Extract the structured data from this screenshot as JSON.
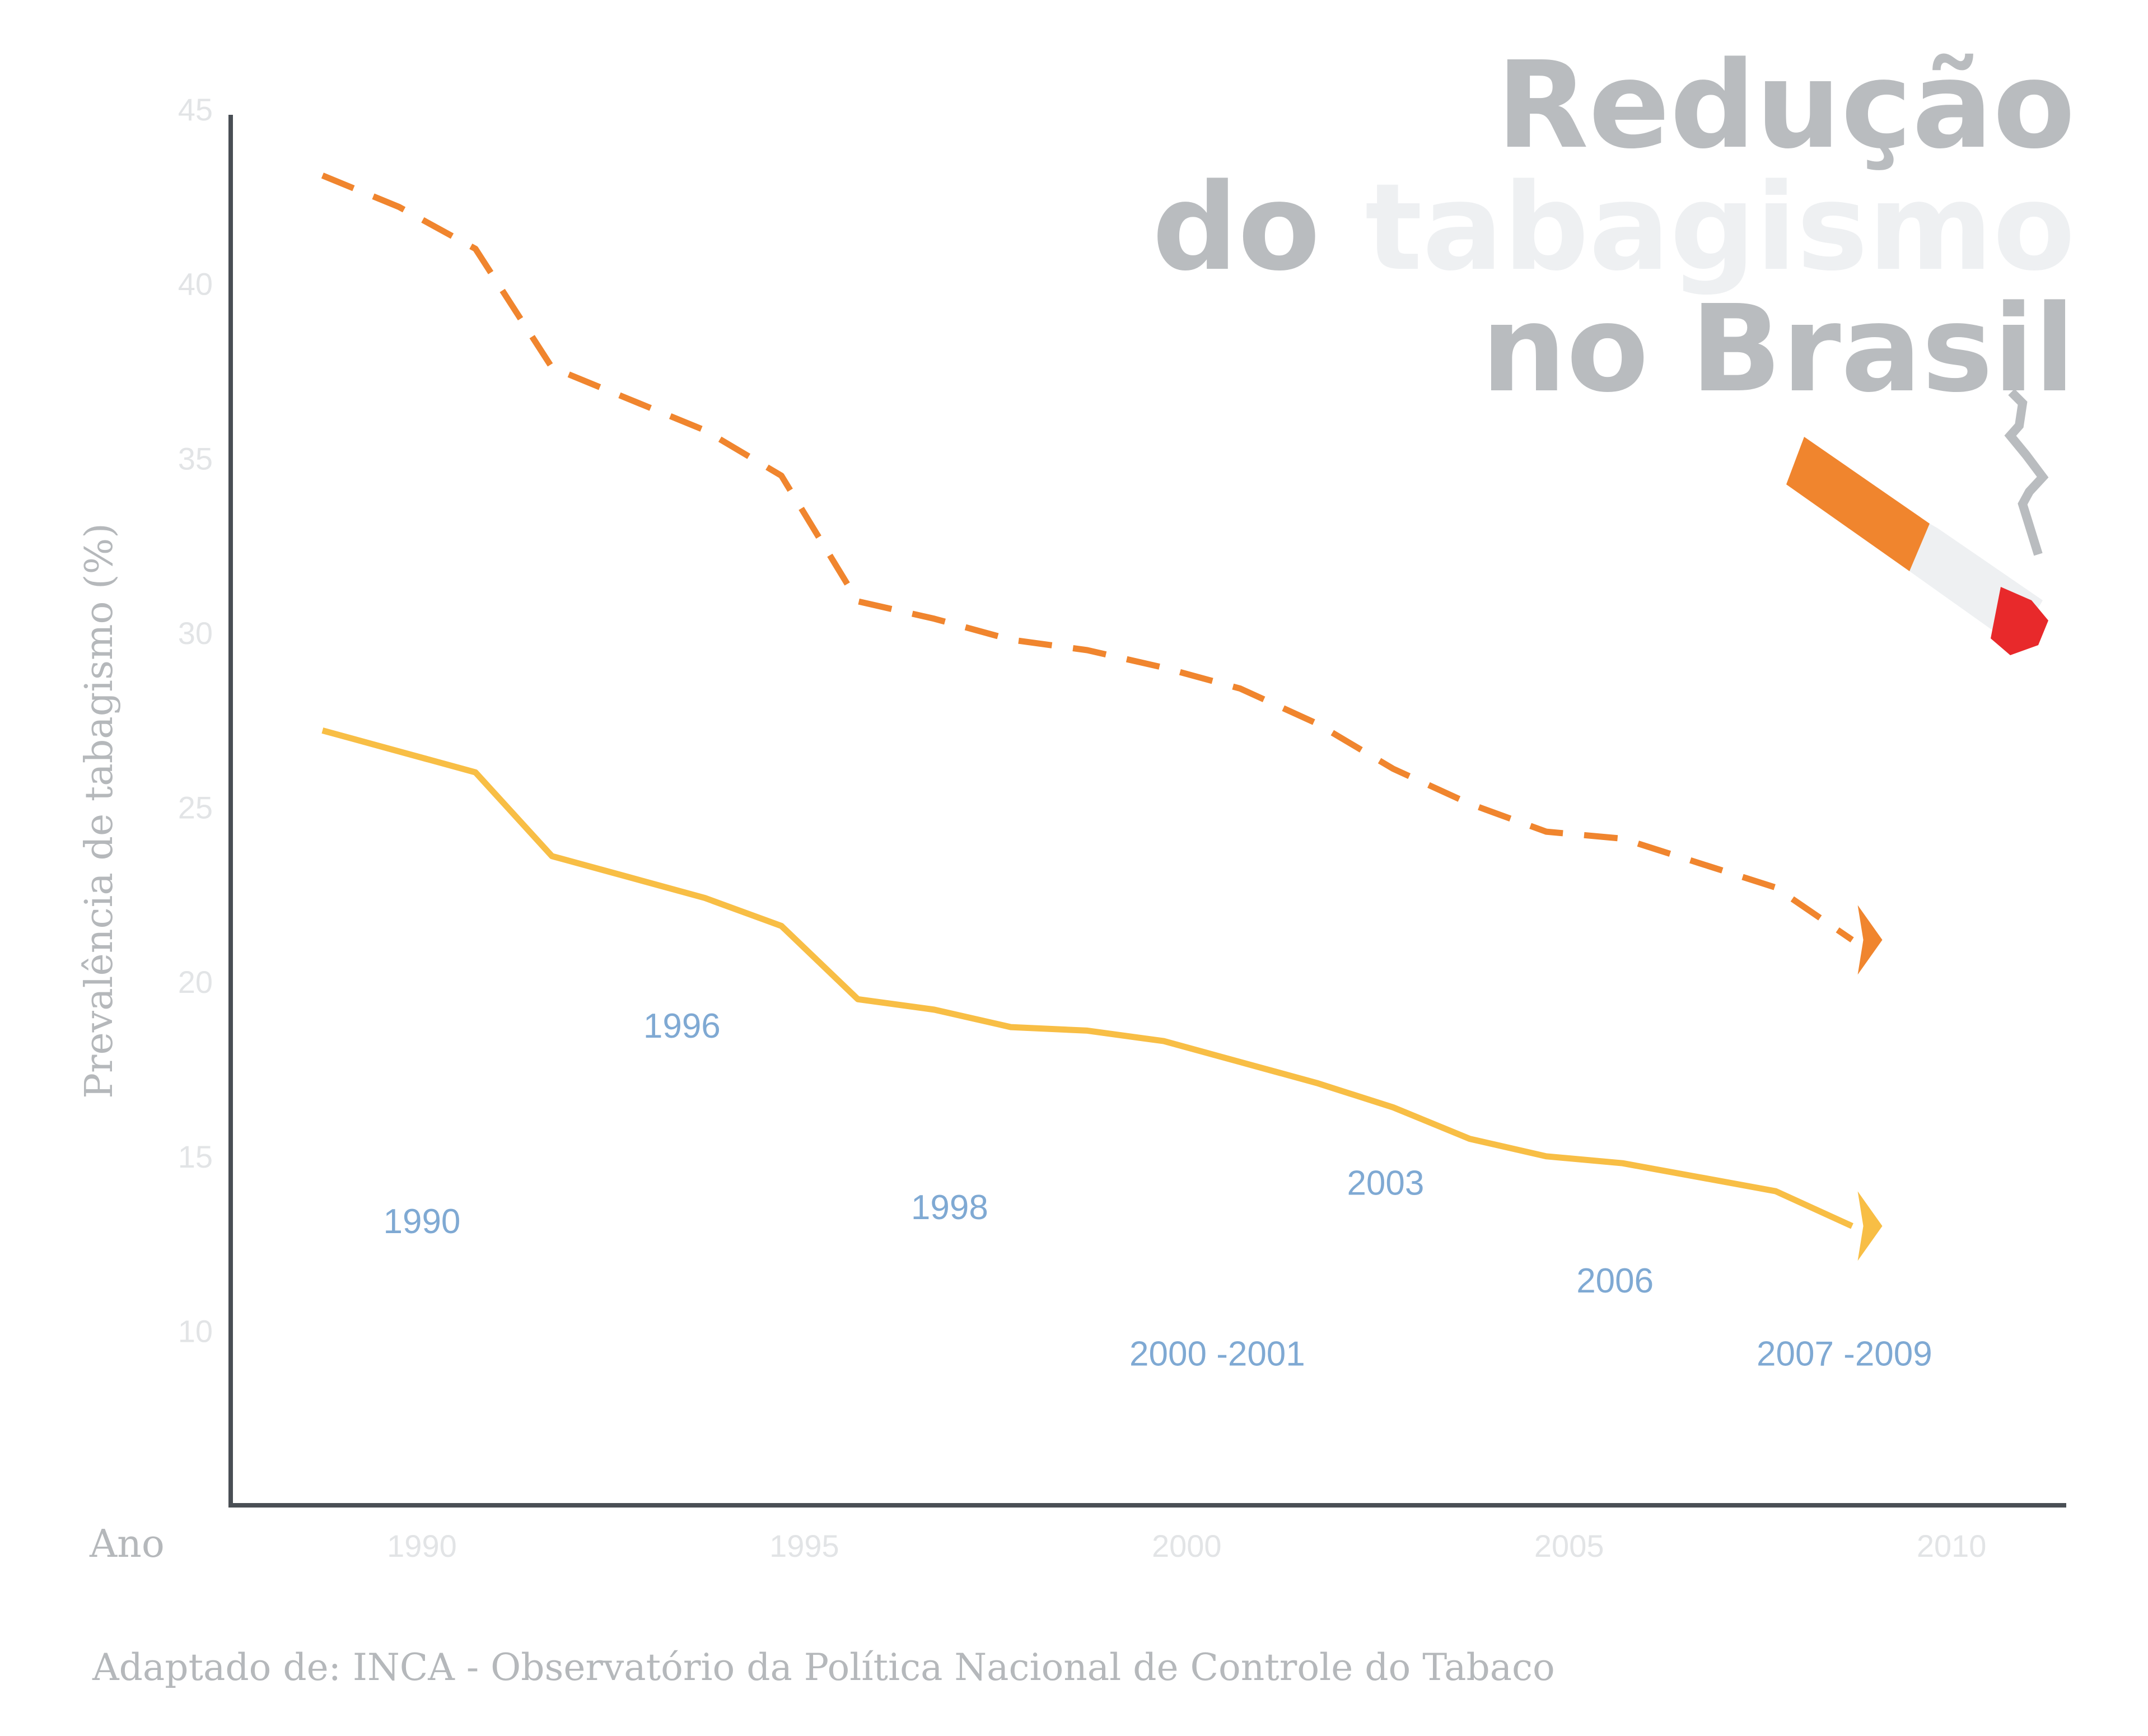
{
  "title": {
    "line1": "Redução",
    "line2_a": "do",
    "line2_b": "tabagismo",
    "line3": "no Brasil"
  },
  "colors": {
    "title_dark": "#b9bcbf",
    "title_light": "#eef0f2",
    "axis": "#4a4f55",
    "tick_label": "#e2e4e6",
    "axis_label": "#b5b8bb",
    "annotation": "#7fa9d3",
    "series_dashed": "#f0852e",
    "series_solid": "#f8be45",
    "source": "#b5b8bb",
    "cig_filter": "#f0852e",
    "cig_paper": "#eef0f2",
    "cig_ember": "#e8292b",
    "smoke": "#b9bcbf"
  },
  "chart_data": {
    "type": "line",
    "xlabel": "Ano",
    "ylabel": "Prevalência de tabagismo (%)",
    "xlim": [
      1987.5,
      2011.5
    ],
    "ylim": [
      5,
      45
    ],
    "x_ticks": [
      1990,
      1995,
      2000,
      2005,
      2010
    ],
    "y_ticks": [
      10,
      15,
      20,
      25,
      30,
      35,
      40,
      45
    ],
    "grid": false,
    "series": [
      {
        "style": "dashed",
        "x": [
          1988.7,
          1989.7,
          1990.7,
          1991.7,
          1992.7,
          1993.7,
          1994.7,
          1995.7,
          1996.7,
          1997.7,
          1998.7,
          1999.7,
          2000.7,
          2001.7,
          2002.7,
          2003.7,
          2004.7,
          2005.7,
          2006.7,
          2007.7,
          2008.7
        ],
        "values": [
          43.1,
          42.2,
          41.0,
          37.6,
          36.7,
          35.8,
          34.5,
          30.9,
          30.4,
          29.8,
          29.5,
          29.0,
          28.4,
          27.4,
          26.1,
          25.1,
          24.3,
          24.1,
          23.4,
          22.7,
          21.2
        ]
      },
      {
        "style": "solid",
        "x": [
          1988.7,
          1989.7,
          1990.7,
          1991.7,
          1992.7,
          1993.7,
          1994.7,
          1995.7,
          1996.7,
          1997.7,
          1998.7,
          1999.7,
          2000.7,
          2001.7,
          2002.7,
          2003.7,
          2004.7,
          2005.7,
          2006.7,
          2007.7,
          2008.7
        ],
        "values": [
          27.2,
          26.6,
          26.0,
          23.6,
          23.0,
          22.4,
          21.6,
          19.5,
          19.2,
          18.7,
          18.6,
          18.3,
          17.7,
          17.1,
          16.4,
          15.5,
          15.0,
          14.8,
          14.4,
          14.0,
          13.0
        ]
      }
    ],
    "annotations": [
      {
        "text": "1990",
        "x": 1990.0,
        "y": 12.8
      },
      {
        "text": "1996",
        "x": 1993.4,
        "y": 18.4
      },
      {
        "text": "1998",
        "x": 1996.9,
        "y": 13.2
      },
      {
        "text": "2000 -2001",
        "x": 2000.4,
        "y": 9.0
      },
      {
        "text": "2003",
        "x": 2002.6,
        "y": 13.9
      },
      {
        "text": "2006",
        "x": 2005.6,
        "y": 11.1
      },
      {
        "text": "2007 -2009",
        "x": 2008.6,
        "y": 9.0
      }
    ]
  },
  "source": "Adaptado de: INCA - Observatório da Política Nacional de Controle do Tabaco"
}
